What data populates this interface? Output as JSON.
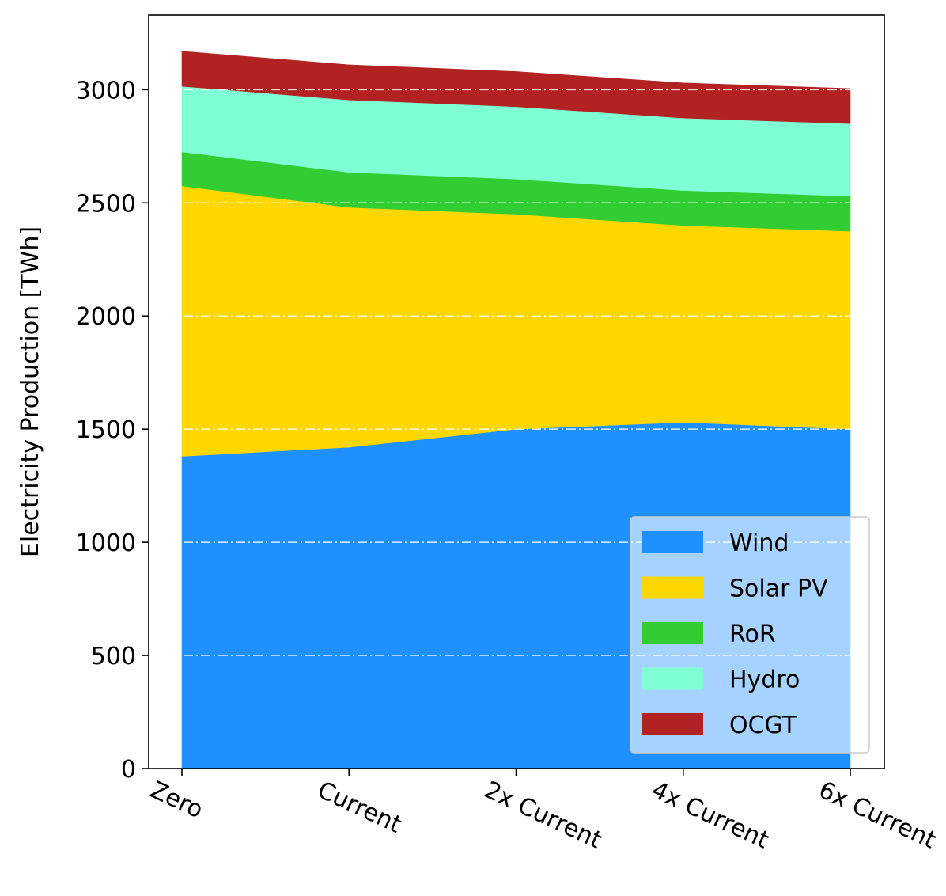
{
  "chart_data": {
    "type": "area",
    "stacked": true,
    "categories": [
      "Zero",
      "Current",
      "2x Current",
      "4x Current",
      "6x Current"
    ],
    "ylabel": "Electricity Production [TWh]",
    "xlabel": "",
    "ylim": [
      0,
      3330
    ],
    "yticks": [
      0,
      500,
      1000,
      1500,
      2000,
      2500,
      3000
    ],
    "ytick_labels": [
      "0",
      "500",
      "1000",
      "1500",
      "2000",
      "2500",
      "3000"
    ],
    "grid": {
      "axis": "y",
      "style": "dash-dot",
      "color": "#ffffff"
    },
    "legend_position": "lower-right",
    "series": [
      {
        "name": "Wind",
        "color": "#1E90FF",
        "values": [
          1380,
          1420,
          1500,
          1530,
          1500
        ]
      },
      {
        "name": "Solar PV",
        "color": "#FFD700",
        "values": [
          1195,
          1060,
          950,
          870,
          875
        ]
      },
      {
        "name": "RoR",
        "color": "#32CD32",
        "values": [
          150,
          155,
          155,
          155,
          155
        ]
      },
      {
        "name": "Hydro",
        "color": "#7FFFD4",
        "values": [
          290,
          320,
          320,
          320,
          320
        ]
      },
      {
        "name": "OCGT",
        "color": "#B22222",
        "values": [
          155,
          155,
          155,
          155,
          155
        ]
      }
    ]
  }
}
